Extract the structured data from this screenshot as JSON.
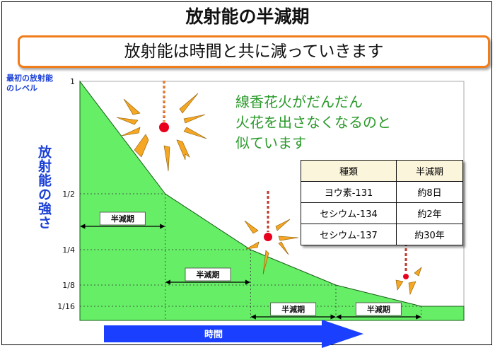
{
  "title": "放射能の半減期",
  "subtitle": "放射能は時間と共に減っていきます",
  "initial_level_label": [
    "最初の放射能",
    "のレベル"
  ],
  "y_axis_title": "放射能の強さ",
  "x_axis_label": "時間",
  "note_lines": [
    "線香花火がだんだん",
    "火花を出さなくなるのと",
    "似ています"
  ],
  "table": {
    "headers": [
      "種類",
      "半減期"
    ],
    "rows": [
      [
        "ヨウ素-131",
        "約8日"
      ],
      [
        "セシウム-134",
        "約2年"
      ],
      [
        "セシウム-137",
        "約30年"
      ]
    ]
  },
  "colors": {
    "fill": "#66ee66",
    "arrow": "#1a3fff",
    "spark": "#f5a623",
    "ember": "#e8001c",
    "title_text": "#1a3fd6"
  },
  "chart_data": {
    "type": "area",
    "x": [
      0,
      1,
      2,
      3,
      4
    ],
    "x_units": "half-lives",
    "y": [
      1,
      0.5,
      0.25,
      0.125,
      0.0625
    ],
    "y_tick_labels": [
      "1",
      "1/2",
      "1/4",
      "1/8",
      "1/16"
    ],
    "y_tick_values": [
      1,
      0.5,
      0.25,
      0.125,
      0.0625
    ],
    "x_range": [
      0,
      4.5
    ],
    "half_life_label": "半減期",
    "half_life_intervals": [
      [
        0,
        1
      ],
      [
        1,
        2
      ],
      [
        2,
        3
      ],
      [
        3,
        4
      ]
    ],
    "grid": "dotted guides at each half-life"
  }
}
